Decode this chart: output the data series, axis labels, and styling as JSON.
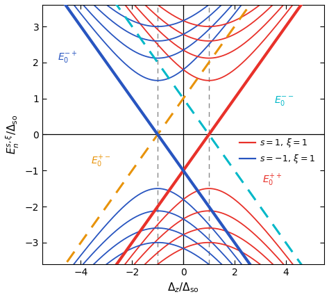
{
  "xlim": [
    -5.5,
    5.5
  ],
  "ylim": [
    -3.6,
    3.6
  ],
  "xlabel": "$\\Delta_z/\\Delta_{so}$",
  "ylabel": "$E_n^{s,\\xi}/\\Delta_{so}$",
  "xticks": [
    -4,
    -2,
    0,
    2,
    4
  ],
  "yticks": [
    -3,
    -2,
    -1,
    0,
    1,
    2,
    3
  ],
  "vlines_dashed": [
    -1,
    1
  ],
  "colors": {
    "red": "#e8312a",
    "blue": "#2855c0",
    "orange": "#e8930a",
    "cyan": "#00b8c8"
  },
  "n_landau_max": 4,
  "wc_sq": 1.1236,
  "Dso": 1.0,
  "figsize": [
    4.74,
    4.3
  ],
  "dpi": 100
}
